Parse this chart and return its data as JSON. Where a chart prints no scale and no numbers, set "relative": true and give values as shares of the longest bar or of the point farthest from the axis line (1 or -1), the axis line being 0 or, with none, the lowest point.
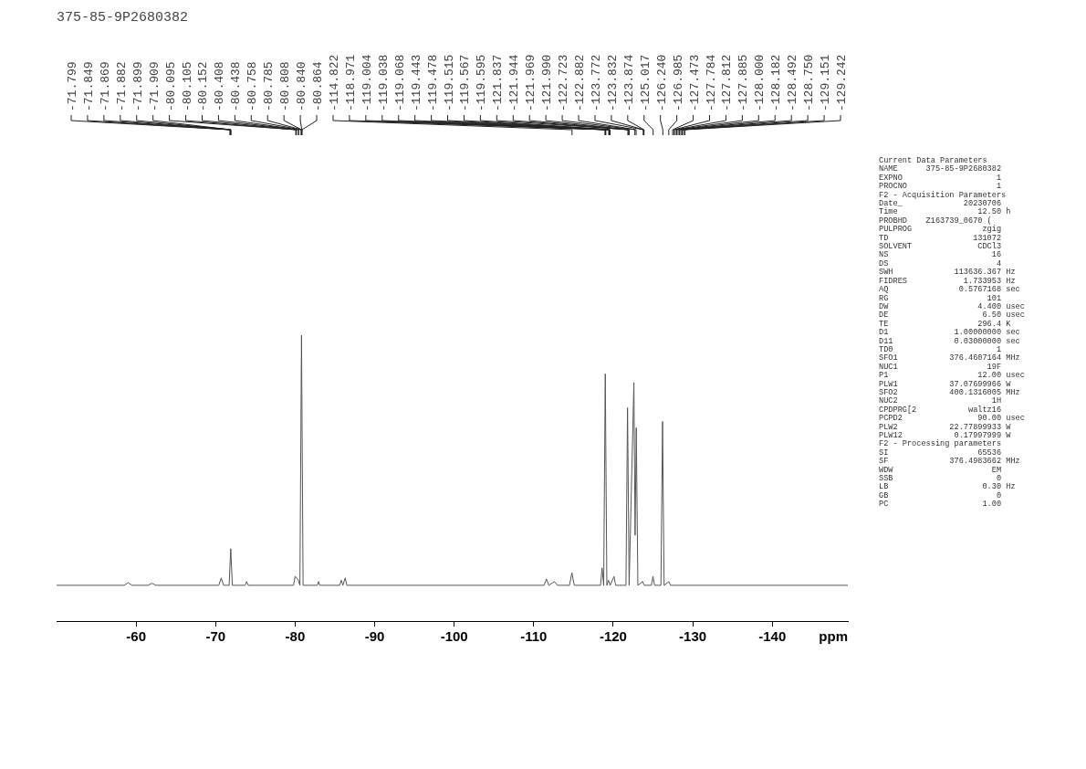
{
  "chart_data": {
    "type": "line",
    "title": "375-85-9P2680382",
    "xlabel": "ppm",
    "relative": true,
    "series": [
      {
        "color": "#555555",
        "x": [
          -50,
          -58.5,
          -59,
          -59.5,
          -61.5,
          -62,
          -62.5,
          -70.4,
          -70.7,
          -71,
          -71.7,
          -71.9,
          -72.1,
          -73.7,
          -73.9,
          -74.1,
          -79.8,
          -80.0,
          -80.2,
          -80.4,
          -80.6,
          -80.8,
          -81.0,
          -82.8,
          -82.95,
          -83.1,
          -85.6,
          -85.8,
          -86.0,
          -86.3,
          -86.5,
          -111.3,
          -111.6,
          -111.9,
          -112.6,
          -113,
          -114.5,
          -114.8,
          -115.1,
          -118.4,
          -118.6,
          -118.8,
          -119.0,
          -119.2,
          -119.4,
          -119.6,
          -120.1,
          -120.3,
          -121.6,
          -121.8,
          -122.0,
          -122.6,
          -122.75,
          -122.9,
          -123.1,
          -123.7,
          -123.9,
          -124.8,
          -125.0,
          -125.2,
          -126.0,
          -126.2,
          -126.4,
          -127.0,
          -127.2,
          -149.5
        ],
        "values": [
          0.125,
          0.125,
          0.134,
          0.125,
          0.125,
          0.132,
          0.125,
          0.125,
          0.151,
          0.125,
          0.125,
          0.253,
          0.125,
          0.125,
          0.138,
          0.125,
          0.125,
          0.156,
          0.151,
          0.143,
          0.125,
          1,
          0.125,
          0.125,
          0.138,
          0.125,
          0.125,
          0.143,
          0.125,
          0.151,
          0.125,
          0.125,
          0.147,
          0.125,
          0.138,
          0.125,
          0.125,
          0.169,
          0.125,
          0.125,
          0.186,
          0.125,
          0.865,
          0.125,
          0.143,
          0.125,
          0.156,
          0.125,
          0.125,
          0.746,
          0.125,
          0.834,
          0.3,
          0.676,
          0.125,
          0.138,
          0.125,
          0.125,
          0.156,
          0.125,
          0.125,
          0.698,
          0.125,
          0.138,
          0.125,
          0.125
        ]
      }
    ],
    "xlim": [
      -50,
      -149.5
    ],
    "xticks": [
      -60,
      -70,
      -80,
      -90,
      -100,
      -110,
      -120,
      -130,
      -140
    ],
    "grid": false,
    "legend": false,
    "annotations": [
      {
        "text": "-71.799",
        "x": -71.799
      },
      {
        "text": "-71.849",
        "x": -71.849
      },
      {
        "text": "-71.869",
        "x": -71.869
      },
      {
        "text": "-71.882",
        "x": -71.882
      },
      {
        "text": "-71.899",
        "x": -71.899
      },
      {
        "text": "-71.909",
        "x": -71.909
      },
      {
        "text": "-80.095",
        "x": -80.095
      },
      {
        "text": "-80.105",
        "x": -80.105
      },
      {
        "text": "-80.152",
        "x": -80.152
      },
      {
        "text": "-80.408",
        "x": -80.408
      },
      {
        "text": "-80.438",
        "x": -80.438
      },
      {
        "text": "-80.758",
        "x": -80.758
      },
      {
        "text": "-80.785",
        "x": -80.785
      },
      {
        "text": "-80.808",
        "x": -80.808
      },
      {
        "text": "-80.840",
        "x": -80.84
      },
      {
        "text": "-80.864",
        "x": -80.864
      },
      {
        "text": "-114.822",
        "x": -114.822
      },
      {
        "text": "-118.971",
        "x": -118.971
      },
      {
        "text": "-119.004",
        "x": -119.004
      },
      {
        "text": "-119.038",
        "x": -119.038
      },
      {
        "text": "-119.068",
        "x": -119.068
      },
      {
        "text": "-119.443",
        "x": -119.443
      },
      {
        "text": "-119.478",
        "x": -119.478
      },
      {
        "text": "-119.515",
        "x": -119.515
      },
      {
        "text": "-119.567",
        "x": -119.567
      },
      {
        "text": "-119.595",
        "x": -119.595
      },
      {
        "text": "-121.837",
        "x": -121.837
      },
      {
        "text": "-121.944",
        "x": -121.944
      },
      {
        "text": "-121.969",
        "x": -121.969
      },
      {
        "text": "-121.990",
        "x": -121.99
      },
      {
        "text": "-122.723",
        "x": -122.723
      },
      {
        "text": "-122.882",
        "x": -122.882
      },
      {
        "text": "-123.772",
        "x": -123.772
      },
      {
        "text": "-123.832",
        "x": -123.832
      },
      {
        "text": "-123.874",
        "x": -123.874
      },
      {
        "text": "-125.017",
        "x": -125.017
      },
      {
        "text": "-126.240",
        "x": -126.24
      },
      {
        "text": "-126.985",
        "x": -126.985
      },
      {
        "text": "-127.473",
        "x": -127.473
      },
      {
        "text": "-127.784"
      },
      {
        "text": "-127.812"
      },
      {
        "text": "-127.885"
      },
      {
        "text": "-128.000"
      },
      {
        "text": "-128.182"
      },
      {
        "text": "-128.492"
      },
      {
        "text": "-128.750"
      },
      {
        "text": "-129.151"
      },
      {
        "text": "-129.242"
      },
      "Current Data Parameters",
      "NAME      375-85-9P2680382",
      "EXPNO                    1",
      "PROCNO                   1",
      "F2 - Acquisition Parameters",
      "Date_             20230706",
      "Time                 12.50 h",
      "PROBHD    Z163739_0670 (",
      "PULPROG               zgig",
      "TD                  131072",
      "SOLVENT              CDCl3",
      "NS                      16",
      "DS                       4",
      "SWH             113636.367 Hz",
      "FIDRES            1.733953 Hz",
      "AQ               0.5767168 sec",
      "RG                     101",
      "DW                   4.400 usec",
      "DE                    6.50 usec",
      "TE                   296.4 K",
      "D1              1.00000000 sec",
      "D11             0.03000000 sec",
      "TD0                      1",
      "SFO1           376.4607164 MHz",
      "NUC1                   19F",
      "P1                   12.00 usec",
      "PLW1           37.07699966 W",
      "SFO2           400.1316005 MHz",
      "NUC2                    1H",
      "CPDPRG[2           waltz16",
      "PCPD2                90.00 usec",
      "PLW2           22.77899933 W",
      "PLW12           0.17997999 W",
      "F2 - Processing parameters",
      "SI                   65536",
      "SF             376.4983662 MHz",
      "WDW                     EM",
      "SSB                      0",
      "LB                    0.30 Hz",
      "GB                       0",
      "PC                    1.00"
    ]
  }
}
